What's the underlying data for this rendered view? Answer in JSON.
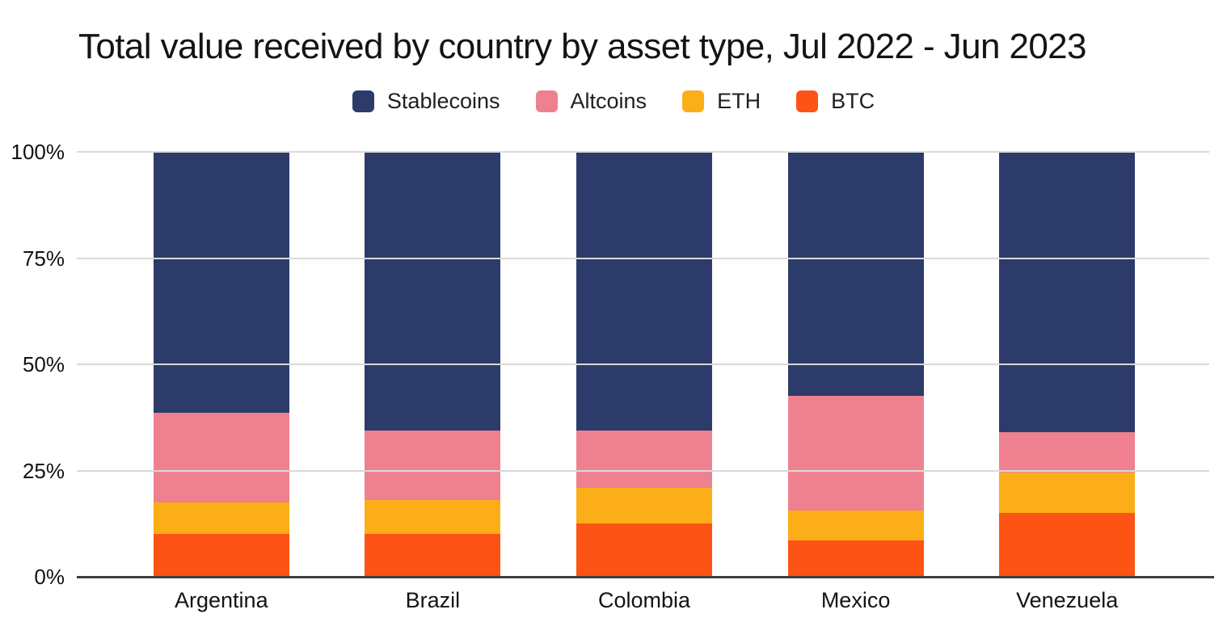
{
  "chart_data": {
    "type": "bar",
    "stacked": true,
    "stack_unit": "percent",
    "title": "Total value received by country by asset type, Jul 2022 - Jun 2023",
    "legend_position": "top",
    "grid": "horizontal",
    "categories": [
      "Argentina",
      "Brazil",
      "Colombia",
      "Mexico",
      "Venezuela"
    ],
    "series": [
      {
        "name": "Stablecoins",
        "color": "#2C3B6A",
        "values": [
          61.5,
          65.5,
          65.5,
          57.5,
          66.0
        ]
      },
      {
        "name": "Altcoins",
        "color": "#EF8090",
        "values": [
          21.0,
          16.5,
          13.5,
          27.0,
          9.5
        ]
      },
      {
        "name": "ETH",
        "color": "#FBAE17",
        "values": [
          7.5,
          8.0,
          8.5,
          7.0,
          9.5
        ]
      },
      {
        "name": "BTC",
        "color": "#FD5314",
        "values": [
          10.0,
          10.0,
          12.5,
          8.5,
          15.0
        ]
      }
    ],
    "ylim": [
      0,
      100
    ],
    "y_ticks": [
      {
        "value": 0,
        "label": "0%"
      },
      {
        "value": 25,
        "label": "25%"
      },
      {
        "value": 50,
        "label": "50%"
      },
      {
        "value": 75,
        "label": "75%"
      },
      {
        "value": 100,
        "label": "100%"
      }
    ],
    "xlabel": "",
    "ylabel": ""
  }
}
